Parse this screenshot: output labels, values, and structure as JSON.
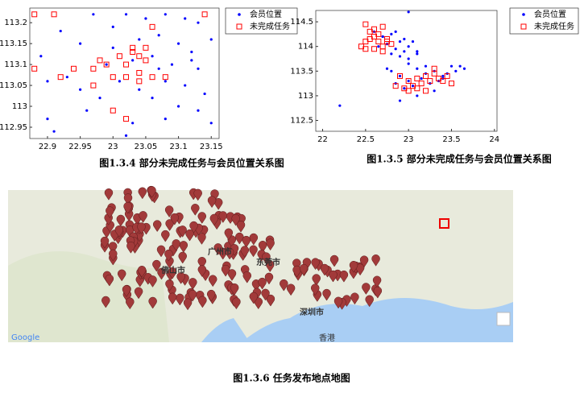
{
  "chart_data": [
    {
      "type": "scatter",
      "caption": "图1.3.4 部分未完成任务与会员位置关系图",
      "xlim": [
        22.873,
        23.162
      ],
      "xticks": [
        22.9,
        22.95,
        23,
        23.05,
        23.1,
        23.15
      ],
      "ylim": [
        112.923,
        113.235
      ],
      "yticks": [
        112.95,
        113,
        113.05,
        113.1,
        113.15,
        113.2
      ],
      "legend": "upper right",
      "series": [
        {
          "name": "会员位置",
          "color": "#0000ff",
          "marker": "dot",
          "x": [
            23.02,
            23.05,
            23.08,
            23.11,
            23.13,
            22.97,
            22.92,
            23.07,
            23.1,
            23.12,
            23.15,
            23.04,
            23.0,
            22.95,
            22.89,
            23.13,
            23.09,
            23.06,
            23.03,
            22.99,
            22.93,
            22.9,
            22.95,
            23.08,
            23.11,
            23.14,
            23.04,
            22.98,
            23.01,
            23.06,
            23.1,
            23.13,
            23.08,
            23.15,
            23.03,
            22.96,
            22.9,
            22.91,
            23.02,
            23.12,
            23.0,
            23.07
          ],
          "values": [
            113.22,
            113.21,
            113.22,
            113.21,
            113.2,
            113.22,
            113.18,
            113.17,
            113.15,
            113.13,
            113.16,
            113.16,
            113.14,
            113.15,
            113.12,
            113.09,
            113.1,
            113.12,
            113.11,
            113.1,
            113.07,
            113.06,
            113.04,
            113.06,
            113.05,
            113.03,
            113.04,
            113.02,
            113.06,
            113.02,
            113.0,
            112.99,
            112.97,
            112.96,
            112.96,
            112.99,
            112.97,
            112.94,
            112.93,
            113.11,
            113.19,
            113.09
          ]
        },
        {
          "name": "未完成任务",
          "color": "#ff0000",
          "marker": "square",
          "x": [
            22.88,
            22.91,
            23.14,
            22.98,
            22.99,
            22.97,
            22.94,
            22.92,
            22.88,
            23.03,
            23.04,
            23.05,
            23.02,
            23.01,
            23.04,
            23.06,
            23.02,
            23.08,
            23.0,
            22.97,
            23.04,
            23.06,
            23.03,
            23.05,
            23.02,
            23.0
          ],
          "values": [
            113.22,
            113.22,
            113.22,
            113.11,
            113.1,
            113.09,
            113.09,
            113.07,
            113.09,
            113.13,
            113.12,
            113.11,
            113.1,
            113.12,
            113.08,
            113.07,
            113.07,
            113.07,
            113.07,
            113.05,
            113.06,
            113.19,
            113.14,
            113.14,
            112.97,
            112.99
          ]
        }
      ]
    },
    {
      "type": "scatter",
      "caption": "图1.3.5 部分未完成任务与会员位置关系图",
      "xlim": [
        21.92,
        24.03
      ],
      "xticks": [
        22,
        22.5,
        23,
        23.5,
        24
      ],
      "ylim": [
        112.28,
        114.73
      ],
      "yticks": [
        112.5,
        113,
        113.5,
        114,
        114.5
      ],
      "legend": "upper right",
      "series": [
        {
          "name": "会员位置",
          "color": "#0000ff",
          "marker": "dot",
          "x": [
            22.2,
            23.0,
            22.6,
            22.7,
            22.8,
            22.9,
            23.0,
            23.1,
            22.75,
            22.85,
            22.95,
            23.05,
            22.65,
            22.8,
            22.9,
            23.0,
            22.7,
            22.85,
            23.1,
            22.95,
            22.8,
            22.9,
            23.0,
            23.1,
            23.2,
            23.3,
            23.4,
            23.5,
            23.6,
            22.85,
            22.95,
            23.05,
            23.15,
            23.25,
            23.35,
            23.45,
            23.55,
            23.65,
            22.75,
            23.0,
            23.2,
            23.4,
            22.9,
            23.1,
            23.3
          ],
          "values": [
            112.8,
            114.7,
            114.3,
            114.2,
            114.25,
            114.1,
            114.0,
            113.9,
            114.05,
            113.95,
            114.15,
            114.1,
            114.0,
            113.85,
            113.8,
            113.75,
            114.2,
            114.3,
            113.85,
            113.9,
            113.5,
            113.4,
            113.3,
            113.55,
            113.45,
            113.5,
            113.35,
            113.6,
            113.6,
            113.25,
            113.15,
            113.2,
            113.35,
            113.25,
            113.3,
            113.45,
            113.5,
            113.55,
            113.55,
            113.65,
            113.6,
            113.4,
            112.9,
            113.0,
            113.1
          ]
        },
        {
          "name": "未完成任务",
          "color": "#ff0000",
          "marker": "square",
          "x": [
            22.45,
            22.5,
            22.55,
            22.6,
            22.65,
            22.7,
            22.75,
            22.8,
            22.5,
            22.6,
            22.7,
            22.55,
            22.65,
            22.75,
            22.5,
            22.6,
            22.7,
            22.9,
            23.0,
            23.1,
            23.2,
            23.3,
            23.4,
            23.5,
            22.95,
            23.05,
            23.15,
            23.25,
            23.35,
            23.45,
            23.0,
            23.1,
            23.2,
            22.85,
            23.3
          ],
          "values": [
            114.0,
            114.1,
            114.15,
            114.2,
            114.1,
            114.0,
            114.15,
            114.05,
            113.95,
            113.95,
            113.9,
            114.3,
            114.25,
            114.1,
            114.45,
            114.35,
            114.4,
            113.4,
            113.3,
            113.35,
            113.4,
            113.45,
            113.3,
            113.25,
            113.15,
            113.2,
            113.25,
            113.3,
            113.35,
            113.4,
            113.1,
            113.15,
            113.1,
            113.2,
            113.55
          ]
        }
      ]
    }
  ],
  "map": {
    "labels": [
      "广州市",
      "佛山市",
      "东莞市",
      "深圳市",
      "香港"
    ],
    "brand": "Google",
    "caption": "图1.3.6 任务发布地点地图"
  }
}
